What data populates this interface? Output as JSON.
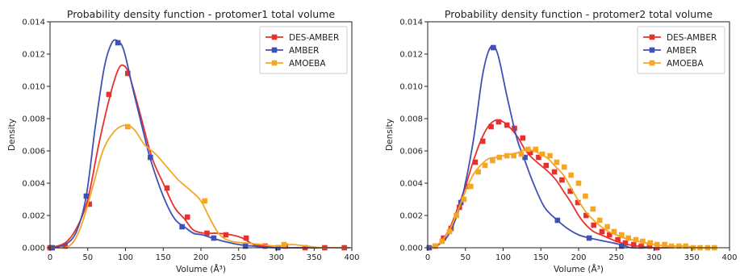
{
  "chart_data": [
    {
      "type": "line",
      "title": "Probability density function - protomer1 total volume",
      "xlabel": "Volume (Å³)",
      "ylabel": "Density",
      "xlim": [
        0,
        400
      ],
      "ylim": [
        0,
        0.014
      ],
      "xticks": [
        "0",
        "50",
        "100",
        "150",
        "200",
        "250",
        "300",
        "350",
        "400"
      ],
      "yticks": [
        "0.000",
        "0.002",
        "0.004",
        "0.006",
        "0.008",
        "0.010",
        "0.012",
        "0.014"
      ],
      "legend": "top-right",
      "grid": false,
      "series": [
        {
          "name": "DES-AMBER",
          "color": "#e8312f",
          "curve": [
            [
              0,
              0
            ],
            [
              20,
              0.0003
            ],
            [
              35,
              0.0012
            ],
            [
              50,
              0.003
            ],
            [
              65,
              0.0065
            ],
            [
              80,
              0.0095
            ],
            [
              90,
              0.011
            ],
            [
              97,
              0.0113
            ],
            [
              105,
              0.0107
            ],
            [
              120,
              0.0082
            ],
            [
              135,
              0.0056
            ],
            [
              150,
              0.004
            ],
            [
              165,
              0.0025
            ],
            [
              178,
              0.0018
            ],
            [
              190,
              0.0011
            ],
            [
              205,
              0.0009
            ],
            [
              220,
              0.0009
            ],
            [
              240,
              0.0008
            ],
            [
              255,
              0.0006
            ],
            [
              270,
              0.0002
            ],
            [
              285,
              0.0001
            ],
            [
              300,
              0
            ],
            [
              330,
              0
            ],
            [
              397,
              0
            ]
          ],
          "markers": [
            [
              0,
              0
            ],
            [
              20,
              0.0001
            ],
            [
              52,
              0.0027
            ],
            [
              78,
              0.0095
            ],
            [
              103,
              0.0108
            ],
            [
              155,
              0.0037
            ],
            [
              182,
              0.0019
            ],
            [
              208,
              0.0009
            ],
            [
              233,
              0.0008
            ],
            [
              260,
              0.0006
            ],
            [
              285,
              0.0001
            ],
            [
              312,
              0.0001
            ],
            [
              338,
              0
            ],
            [
              364,
              0
            ],
            [
              390,
              0
            ]
          ]
        },
        {
          "name": "AMBER",
          "color": "#3f51b5",
          "curve": [
            [
              0,
              0
            ],
            [
              20,
              0.0002
            ],
            [
              35,
              0.001
            ],
            [
              48,
              0.0032
            ],
            [
              60,
              0.0075
            ],
            [
              72,
              0.0112
            ],
            [
              82,
              0.0127
            ],
            [
              90,
              0.0128
            ],
            [
              98,
              0.0122
            ],
            [
              110,
              0.0098
            ],
            [
              122,
              0.0075
            ],
            [
              133,
              0.0055
            ],
            [
              150,
              0.0032
            ],
            [
              165,
              0.0018
            ],
            [
              178,
              0.0013
            ],
            [
              190,
              0.0009
            ],
            [
              202,
              0.0008
            ],
            [
              215,
              0.0006
            ],
            [
              230,
              0.0004
            ],
            [
              250,
              0.0002
            ],
            [
              270,
              0.0001
            ],
            [
              300,
              0
            ],
            [
              397,
              0
            ]
          ],
          "markers": [
            [
              3,
              0
            ],
            [
              48,
              0.0032
            ],
            [
              90,
              0.0127
            ],
            [
              133,
              0.0056
            ],
            [
              175,
              0.0013
            ],
            [
              217,
              0.0006
            ],
            [
              259,
              0.0001
            ],
            [
              302,
              0
            ]
          ]
        },
        {
          "name": "AMOEBA",
          "color": "#f5a623",
          "curve": [
            [
              0,
              0
            ],
            [
              25,
              0.0001
            ],
            [
              40,
              0.0012
            ],
            [
              55,
              0.0035
            ],
            [
              70,
              0.006
            ],
            [
              85,
              0.0072
            ],
            [
              100,
              0.0076
            ],
            [
              112,
              0.0073
            ],
            [
              125,
              0.0064
            ],
            [
              140,
              0.0058
            ],
            [
              155,
              0.005
            ],
            [
              170,
              0.0042
            ],
            [
              185,
              0.0036
            ],
            [
              200,
              0.0029
            ],
            [
              212,
              0.0018
            ],
            [
              225,
              0.0008
            ],
            [
              240,
              0.0004
            ],
            [
              260,
              0.0003
            ],
            [
              280,
              0.0002
            ],
            [
              300,
              0.0001
            ],
            [
              320,
              0.0002
            ],
            [
              340,
              0.0001
            ],
            [
              360,
              0
            ],
            [
              380,
              0
            ],
            [
              397,
              0
            ]
          ],
          "markers": [
            [
              103,
              0.0075
            ],
            [
              205,
              0.0029
            ],
            [
              310,
              0.0002
            ]
          ]
        }
      ]
    },
    {
      "type": "line",
      "title": "Probability density function - protomer2 total volume",
      "xlabel": "Volume (Å³)",
      "ylabel": "Density",
      "xlim": [
        0,
        400
      ],
      "ylim": [
        0,
        0.014
      ],
      "xticks": [
        "0",
        "50",
        "100",
        "150",
        "200",
        "250",
        "300",
        "350",
        "400"
      ],
      "yticks": [
        "0.000",
        "0.002",
        "0.004",
        "0.006",
        "0.008",
        "0.010",
        "0.012",
        "0.014"
      ],
      "legend": "top-right",
      "grid": false,
      "series": [
        {
          "name": "DES-AMBER",
          "color": "#e8312f",
          "curve": [
            [
              0,
              0
            ],
            [
              10,
              0.0001
            ],
            [
              20,
              0.0005
            ],
            [
              30,
              0.0013
            ],
            [
              40,
              0.0025
            ],
            [
              50,
              0.0038
            ],
            [
              60,
              0.0053
            ],
            [
              70,
              0.0066
            ],
            [
              80,
              0.0075
            ],
            [
              90,
              0.0079
            ],
            [
              100,
              0.0078
            ],
            [
              110,
              0.0074
            ],
            [
              120,
              0.0068
            ],
            [
              130,
              0.006
            ],
            [
              140,
              0.0055
            ],
            [
              150,
              0.0051
            ],
            [
              160,
              0.0047
            ],
            [
              170,
              0.0042
            ],
            [
              180,
              0.0035
            ],
            [
              190,
              0.0028
            ],
            [
              200,
              0.002
            ],
            [
              210,
              0.0014
            ],
            [
              220,
              0.001
            ],
            [
              235,
              0.0007
            ],
            [
              250,
              0.0004
            ],
            [
              265,
              0.0002
            ],
            [
              280,
              0.0001
            ],
            [
              300,
              0
            ],
            [
              320,
              0
            ]
          ],
          "markers": [
            [
              10,
              0.0001
            ],
            [
              21,
              0.0006
            ],
            [
              31,
              0.0012
            ],
            [
              42,
              0.0025
            ],
            [
              52,
              0.0038
            ],
            [
              63,
              0.0053
            ],
            [
              73,
              0.0066
            ],
            [
              84,
              0.0075
            ],
            [
              94,
              0.0078
            ],
            [
              105,
              0.0076
            ],
            [
              115,
              0.0074
            ],
            [
              126,
              0.0068
            ],
            [
              136,
              0.0059
            ],
            [
              147,
              0.0056
            ],
            [
              157,
              0.0051
            ],
            [
              168,
              0.0047
            ],
            [
              178,
              0.0042
            ],
            [
              189,
              0.0035
            ],
            [
              199,
              0.0028
            ],
            [
              210,
              0.002
            ],
            [
              220,
              0.0014
            ],
            [
              231,
              0.001
            ],
            [
              241,
              0.0008
            ],
            [
              252,
              0.0005
            ],
            [
              262,
              0.0003
            ],
            [
              273,
              0.0002
            ],
            [
              283,
              0.0001
            ],
            [
              294,
              0.0001
            ],
            [
              304,
              0
            ]
          ]
        },
        {
          "name": "AMBER",
          "color": "#3f51b5",
          "curve": [
            [
              0,
              0
            ],
            [
              15,
              0.0002
            ],
            [
              30,
              0.001
            ],
            [
              45,
              0.003
            ],
            [
              60,
              0.0065
            ],
            [
              72,
              0.0105
            ],
            [
              80,
              0.0121
            ],
            [
              87,
              0.0125
            ],
            [
              94,
              0.0118
            ],
            [
              105,
              0.0094
            ],
            [
              118,
              0.0068
            ],
            [
              128,
              0.0055
            ],
            [
              140,
              0.004
            ],
            [
              155,
              0.0025
            ],
            [
              172,
              0.0017
            ],
            [
              185,
              0.0012
            ],
            [
              200,
              0.0008
            ],
            [
              215,
              0.0006
            ],
            [
              235,
              0.0004
            ],
            [
              255,
              0.0002
            ],
            [
              270,
              0
            ],
            [
              290,
              0
            ]
          ],
          "markers": [
            [
              2,
              0
            ],
            [
              44,
              0.0028
            ],
            [
              87,
              0.0124
            ],
            [
              129,
              0.0056
            ],
            [
              172,
              0.0017
            ],
            [
              214,
              0.0006
            ],
            [
              257,
              0.0001
            ]
          ]
        },
        {
          "name": "AMOEBA",
          "color": "#f5a623",
          "curve": [
            [
              0,
              0
            ],
            [
              10,
              0.0001
            ],
            [
              20,
              0.0005
            ],
            [
              30,
              0.0012
            ],
            [
              40,
              0.0023
            ],
            [
              50,
              0.0035
            ],
            [
              60,
              0.0045
            ],
            [
              70,
              0.0051
            ],
            [
              80,
              0.0055
            ],
            [
              90,
              0.0056
            ],
            [
              100,
              0.0057
            ],
            [
              110,
              0.0058
            ],
            [
              120,
              0.0059
            ],
            [
              130,
              0.0061
            ],
            [
              140,
              0.006
            ],
            [
              150,
              0.0058
            ],
            [
              160,
              0.0055
            ],
            [
              170,
              0.005
            ],
            [
              180,
              0.0045
            ],
            [
              190,
              0.0037
            ],
            [
              200,
              0.0029
            ],
            [
              210,
              0.0022
            ],
            [
              220,
              0.0017
            ],
            [
              230,
              0.0013
            ],
            [
              240,
              0.001
            ],
            [
              250,
              0.0008
            ],
            [
              260,
              0.0006
            ],
            [
              270,
              0.0005
            ],
            [
              280,
              0.0004
            ],
            [
              290,
              0.0003
            ],
            [
              300,
              0.0002
            ],
            [
              320,
              0.0001
            ],
            [
              340,
              0.0001
            ],
            [
              360,
              0
            ],
            [
              384,
              0
            ]
          ],
          "markers": [
            [
              10,
              0.0001
            ],
            [
              19,
              0.0004
            ],
            [
              29,
              0.001
            ],
            [
              38,
              0.002
            ],
            [
              48,
              0.003
            ],
            [
              57,
              0.0038
            ],
            [
              67,
              0.0047
            ],
            [
              76,
              0.0051
            ],
            [
              86,
              0.0054
            ],
            [
              95,
              0.0056
            ],
            [
              105,
              0.0057
            ],
            [
              114,
              0.0057
            ],
            [
              124,
              0.0058
            ],
            [
              133,
              0.0061
            ],
            [
              143,
              0.0061
            ],
            [
              152,
              0.0058
            ],
            [
              162,
              0.0057
            ],
            [
              171,
              0.0053
            ],
            [
              181,
              0.005
            ],
            [
              190,
              0.0045
            ],
            [
              200,
              0.004
            ],
            [
              209,
              0.0032
            ],
            [
              219,
              0.0024
            ],
            [
              228,
              0.0017
            ],
            [
              238,
              0.0013
            ],
            [
              247,
              0.001
            ],
            [
              257,
              0.0008
            ],
            [
              266,
              0.0006
            ],
            [
              276,
              0.0005
            ],
            [
              285,
              0.0004
            ],
            [
              295,
              0.0003
            ],
            [
              304,
              0.0002
            ],
            [
              314,
              0.0002
            ],
            [
              323,
              0.0001
            ],
            [
              333,
              0.0001
            ],
            [
              342,
              0.0001
            ],
            [
              352,
              0
            ],
            [
              361,
              0
            ],
            [
              371,
              0
            ],
            [
              380,
              0
            ]
          ]
        }
      ]
    }
  ]
}
